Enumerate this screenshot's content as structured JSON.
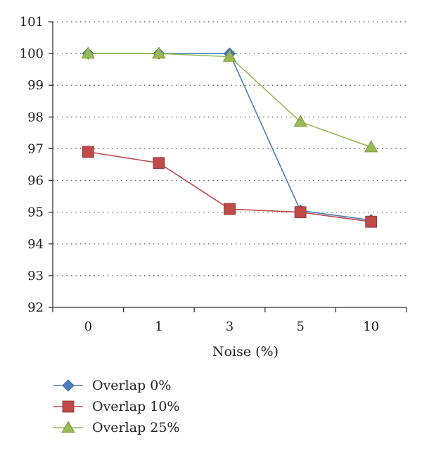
{
  "chart_data": {
    "type": "line",
    "title": "",
    "xlabel": "Noise (%)",
    "ylabel": "",
    "categories": [
      "0",
      "1",
      "3",
      "5",
      "10"
    ],
    "ylim": [
      92,
      101
    ],
    "yticks": [
      92,
      93,
      94,
      95,
      96,
      97,
      98,
      99,
      100,
      101
    ],
    "grid": "horizontal-dotted",
    "legend_position": "bottom",
    "series": [
      {
        "name": "Overlap 0%",
        "marker": "diamond",
        "color": "#4a7ebb",
        "values": [
          100,
          100,
          100,
          95.05,
          94.75
        ]
      },
      {
        "name": "Overlap 10%",
        "marker": "square",
        "color": "#be4b48",
        "values": [
          96.9,
          96.55,
          95.1,
          95.0,
          94.7
        ]
      },
      {
        "name": "Overlap 25%",
        "marker": "triangle",
        "color": "#98b954",
        "values": [
          100,
          100,
          99.9,
          97.85,
          97.05
        ]
      }
    ]
  }
}
